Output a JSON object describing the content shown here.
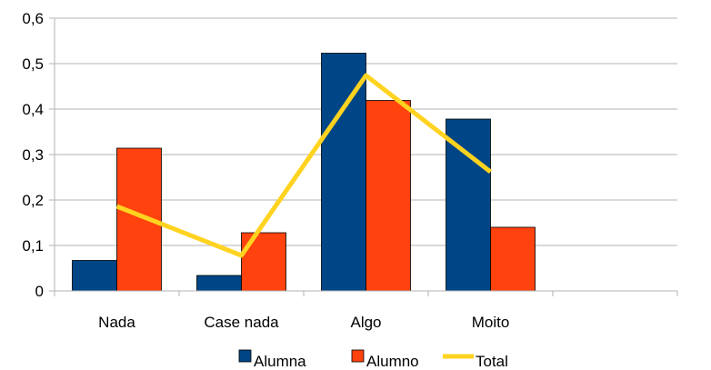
{
  "chart_data": {
    "type": "bar",
    "categories": [
      "Nada",
      "Case nada",
      "Algo",
      "Moito",
      ""
    ],
    "series": [
      {
        "name": "Alumna",
        "type": "bar",
        "color": "#004586",
        "values": [
          0.067,
          0.034,
          0.523,
          0.378,
          null
        ]
      },
      {
        "name": "Alumno",
        "type": "bar",
        "color": "#ff420e",
        "values": [
          0.314,
          0.128,
          0.419,
          0.14,
          null
        ]
      },
      {
        "name": "Total",
        "type": "line",
        "color": "#ffd320",
        "values": [
          0.186,
          0.078,
          0.474,
          0.262,
          null
        ]
      }
    ],
    "yticks": [
      "0",
      "0,1",
      "0,2",
      "0,3",
      "0,4",
      "0,5",
      "0,6"
    ],
    "ylim": [
      0,
      0.6
    ],
    "grid": true,
    "legend": "bottom",
    "title": "",
    "xlabel": "",
    "ylabel": ""
  }
}
